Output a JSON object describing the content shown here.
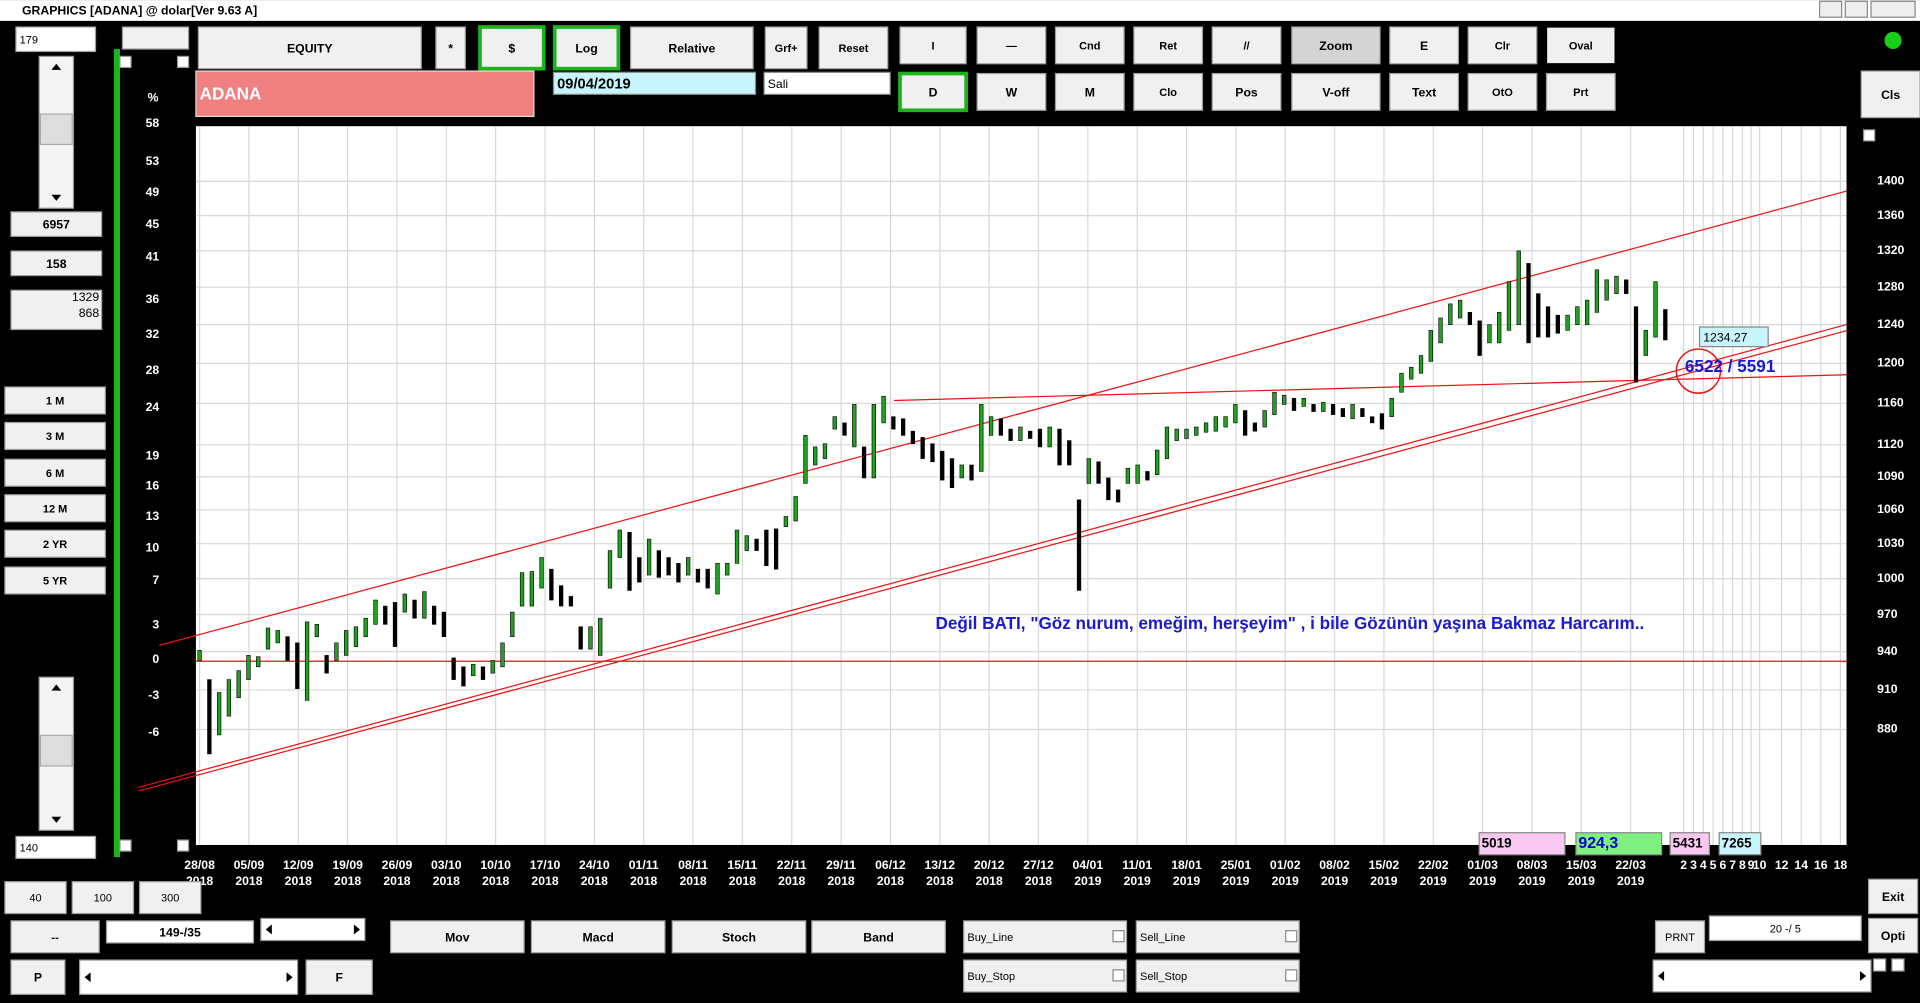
{
  "window_title": "GRAPHICS  [ADANA] @ dolar[Ver 9.63 A]",
  "toolbar": {
    "row1": [
      "EQUITY",
      "*",
      "$",
      "Log",
      "Relative",
      "Grf+",
      "Reset",
      "I",
      "—",
      "Cnd",
      "Ret",
      "//",
      "Zoom",
      "E",
      "Clr",
      "Oval"
    ],
    "row2": [
      "D",
      "W",
      "M",
      "Clo",
      "Pos",
      "V-off",
      "Text",
      "OtO",
      "Prt",
      "Cls"
    ],
    "symbol": "ADANA",
    "date": "09/04/2019",
    "day": "Sali"
  },
  "left_panel": {
    "top_field": "179",
    "fields": [
      "6957",
      "158"
    ],
    "pair": [
      "1329",
      "868"
    ],
    "periods": [
      "1 M",
      "3 M",
      "6 M",
      "12 M",
      "2 YR",
      "5 YR"
    ],
    "bottom_field": "140"
  },
  "bottom": {
    "presets": [
      "40",
      "100",
      "300"
    ],
    "dash": "--",
    "range": "149-/35",
    "p": "P",
    "f": "F",
    "indicators": [
      "Mov",
      "Macd",
      "Stoch",
      "Band"
    ],
    "orders": [
      "Buy_Line",
      "Sell_Line",
      "Buy_Stop",
      "Sell_Stop"
    ],
    "prnt": "PRNT",
    "ratio": "20 -/ 5",
    "exit": "Exit",
    "opti": "Opti"
  },
  "chart": {
    "type": "bar",
    "log_scale": true,
    "grid": true,
    "y_unit": "%",
    "ylim": [
      798,
      1467
    ],
    "yticks": [
      1400,
      1360,
      1320,
      1280,
      1240,
      1200,
      1160,
      1120,
      1090,
      1060,
      1030,
      1000,
      970,
      940,
      910,
      880
    ],
    "y2lim": [
      -14.6,
      57.7
    ],
    "y2ticks": [
      58,
      53,
      49,
      45,
      41,
      36,
      32,
      28,
      24,
      19,
      16,
      13,
      10,
      7,
      3,
      0,
      -3,
      -6
    ],
    "x_labels": [
      [
        "28/08",
        "2018"
      ],
      [
        "05/09",
        "2018"
      ],
      [
        "12/09",
        "2018"
      ],
      [
        "19/09",
        "2018"
      ],
      [
        "26/09",
        "2018"
      ],
      [
        "03/10",
        "2018"
      ],
      [
        "10/10",
        "2018"
      ],
      [
        "17/10",
        "2018"
      ],
      [
        "24/10",
        "2018"
      ],
      [
        "01/11",
        "2018"
      ],
      [
        "08/11",
        "2018"
      ],
      [
        "15/11",
        "2018"
      ],
      [
        "22/11",
        "2018"
      ],
      [
        "29/11",
        "2018"
      ],
      [
        "06/12",
        "2018"
      ],
      [
        "13/12",
        "2018"
      ],
      [
        "20/12",
        "2018"
      ],
      [
        "27/12",
        "2018"
      ],
      [
        "04/01",
        "2019"
      ],
      [
        "11/01",
        "2019"
      ],
      [
        "18/01",
        "2019"
      ],
      [
        "25/01",
        "2019"
      ],
      [
        "01/02",
        "2019"
      ],
      [
        "08/02",
        "2019"
      ],
      [
        "15/02",
        "2019"
      ],
      [
        "22/02",
        "2019"
      ],
      [
        "01/03",
        "2019"
      ],
      [
        "08/03",
        "2019"
      ],
      [
        "15/03",
        "2019"
      ],
      [
        "22/03",
        "2019"
      ]
    ],
    "future_labels": [
      "2",
      "3",
      "4",
      "5",
      "6",
      "7",
      "8",
      "9",
      "10",
      "12",
      "14",
      "16",
      "18"
    ],
    "up_color": "#22a022",
    "down_color": "#000000",
    "highs": [
      941,
      918,
      908,
      918,
      925,
      937,
      936,
      959,
      957,
      952,
      947,
      964,
      962,
      937,
      947,
      957,
      960,
      967,
      982,
      977,
      980,
      987,
      982,
      989,
      977,
      972,
      935,
      928,
      930,
      928,
      933,
      947,
      972,
      1005,
      1006,
      1018,
      1008,
      994,
      985,
      960,
      960,
      967,
      1024,
      1042,
      1040,
      1018,
      1034,
      1024,
      1018,
      1013,
      1018,
      1008,
      1008,
      1013,
      1013,
      1042,
      1037,
      1034,
      1042,
      1043,
      1054,
      1072,
      1129,
      1118,
      1121,
      1147,
      1141,
      1159,
      1118,
      1159,
      1167,
      1147,
      1145,
      1133,
      1127,
      1121,
      1114,
      1107,
      1101,
      1101,
      1159,
      1147,
      1145,
      1135,
      1137,
      1133,
      1135,
      1137,
      1135,
      1124,
      1069,
      1107,
      1104,
      1089,
      1078,
      1098,
      1101,
      1095,
      1115,
      1137,
      1135,
      1135,
      1137,
      1141,
      1147,
      1147,
      1159,
      1153,
      1141,
      1153,
      1171,
      1168,
      1165,
      1165,
      1159,
      1161,
      1159,
      1155,
      1159,
      1155,
      1147,
      1150,
      1165,
      1190,
      1196,
      1208,
      1234,
      1247,
      1262,
      1266,
      1253,
      1244,
      1240,
      1253,
      1286,
      1320,
      1306,
      1273,
      1259,
      1250,
      1250,
      1259,
      1266,
      1299,
      1288,
      1292,
      1288,
      1259,
      1234,
      1286,
      1256
    ],
    "lows": [
      933,
      862,
      876,
      890,
      904,
      918,
      928,
      942,
      947,
      933,
      911,
      902,
      952,
      923,
      933,
      937,
      944,
      952,
      962,
      962,
      944,
      972,
      967,
      967,
      962,
      952,
      918,
      913,
      921,
      918,
      923,
      928,
      952,
      977,
      977,
      992,
      982,
      977,
      977,
      942,
      942,
      937,
      992,
      1018,
      990,
      997,
      1003,
      1001,
      1003,
      997,
      1003,
      997,
      992,
      987,
      1003,
      1013,
      1024,
      1024,
      1011,
      1008,
      1045,
      1050,
      1084,
      1101,
      1107,
      1135,
      1129,
      1118,
      1089,
      1089,
      1141,
      1135,
      1129,
      1121,
      1107,
      1104,
      1087,
      1080,
      1089,
      1087,
      1095,
      1129,
      1129,
      1124,
      1124,
      1126,
      1118,
      1118,
      1101,
      1101,
      990,
      1084,
      1084,
      1069,
      1067,
      1084,
      1084,
      1087,
      1092,
      1107,
      1124,
      1126,
      1129,
      1132,
      1133,
      1137,
      1141,
      1129,
      1133,
      1137,
      1149,
      1159,
      1153,
      1157,
      1152,
      1152,
      1149,
      1147,
      1145,
      1147,
      1141,
      1135,
      1147,
      1171,
      1184,
      1190,
      1202,
      1221,
      1240,
      1247,
      1240,
      1208,
      1221,
      1221,
      1234,
      1240,
      1221,
      1227,
      1227,
      1231,
      1234,
      1240,
      1240,
      1253,
      1266,
      1273,
      1273,
      1181,
      1208,
      1227,
      1224
    ],
    "annotation": "Değil BATI,  \"Göz nurum, emeğim, herşeyim\" , i  bile  Gözünün yaşına Bakmaz Harcarım..",
    "marker_label": "6522 / 5591",
    "price_label": 1234.27,
    "stats": [
      5019,
      "924,3",
      5431,
      7265
    ]
  }
}
